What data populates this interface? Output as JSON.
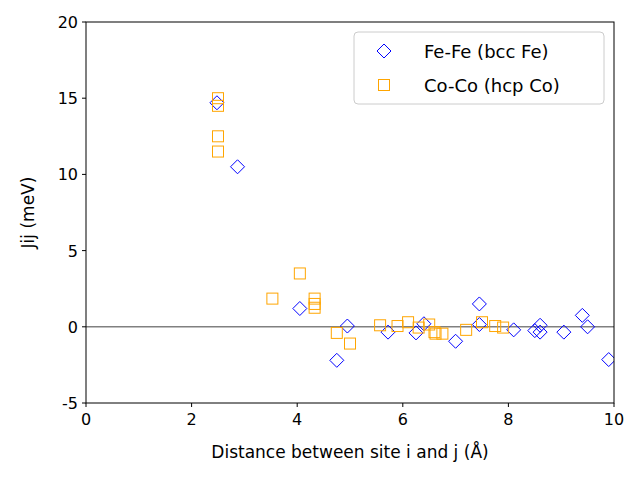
{
  "chart_data": {
    "type": "scatter",
    "x_label": "Distance between site i and j (Å)",
    "y_label": "Jij (meV)",
    "xlim": [
      0,
      10
    ],
    "ylim": [
      -5,
      20
    ],
    "xticks": [
      0,
      2,
      4,
      6,
      8,
      10
    ],
    "yticks": [
      -5,
      0,
      5,
      10,
      15,
      20
    ],
    "grid": false,
    "legend": "upper right",
    "series": [
      {
        "name": "Fe-Fe (bcc Fe)",
        "color": "#0000ff",
        "marker": "diamond",
        "x": [
          2.48,
          2.87,
          4.05,
          4.75,
          4.95,
          5.72,
          6.25,
          6.4,
          7.0,
          7.45,
          7.45,
          8.1,
          8.5,
          8.6,
          8.6,
          9.05,
          9.4,
          9.5,
          9.9
        ],
        "values": [
          14.7,
          10.5,
          1.2,
          -2.2,
          0.05,
          -0.35,
          -0.4,
          0.2,
          -0.95,
          1.5,
          0.15,
          -0.2,
          -0.25,
          0.1,
          -0.35,
          -0.35,
          0.75,
          0.0,
          -2.15
        ]
      },
      {
        "name": "Co-Co (hcp Co)",
        "color": "#ffa500",
        "marker": "square",
        "x": [
          2.5,
          2.5,
          2.5,
          2.5,
          3.53,
          4.05,
          4.33,
          4.33,
          4.33,
          4.75,
          5.0,
          5.57,
          5.9,
          6.1,
          6.3,
          6.5,
          6.6,
          6.62,
          6.75,
          7.2,
          7.5,
          7.75,
          7.9
        ],
        "values": [
          15.0,
          14.5,
          12.5,
          11.5,
          1.85,
          3.5,
          1.85,
          1.5,
          1.25,
          -0.4,
          -1.1,
          0.1,
          0.05,
          0.3,
          -0.05,
          0.15,
          -0.35,
          -0.45,
          -0.45,
          -0.2,
          0.3,
          0.05,
          -0.05
        ]
      }
    ]
  }
}
